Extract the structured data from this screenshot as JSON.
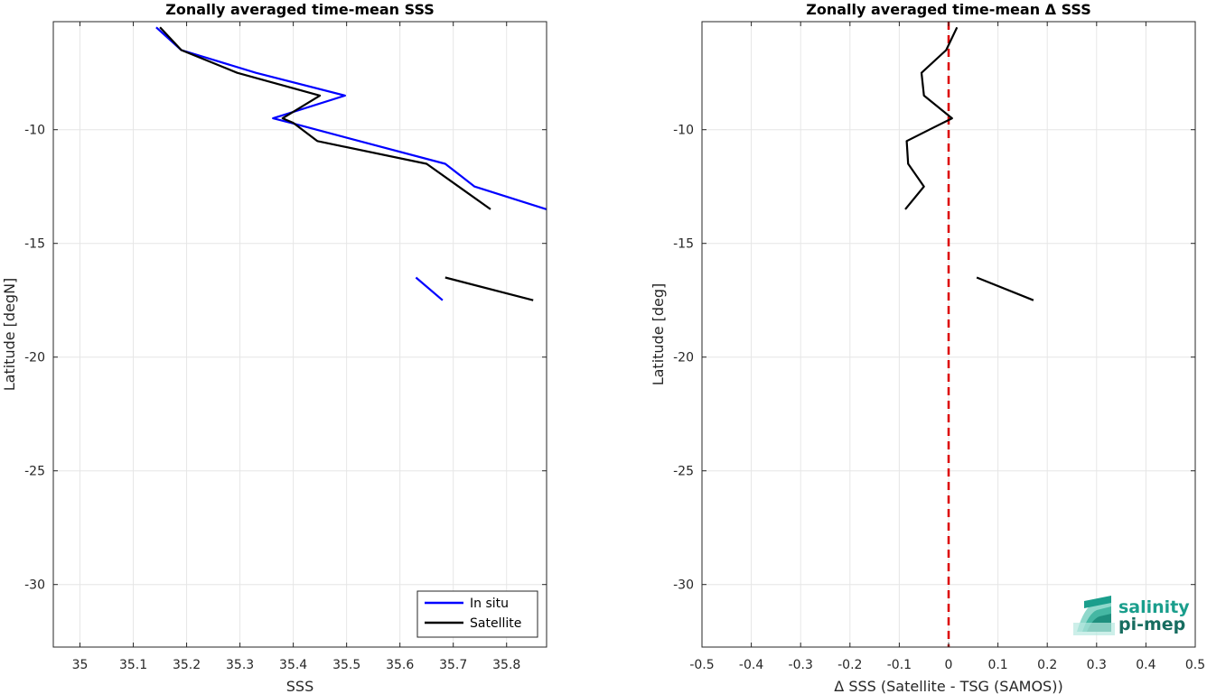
{
  "chart_data": [
    {
      "type": "line",
      "title": "Zonally averaged time-mean SSS",
      "xlabel": "SSS",
      "ylabel": "Latitude [degN]",
      "xlim": [
        34.95,
        35.875
      ],
      "ylim": [
        -32.75,
        -5.25
      ],
      "xticks": [
        35,
        35.1,
        35.2,
        35.3,
        35.4,
        35.5,
        35.6,
        35.7,
        35.8
      ],
      "xtick_labels": [
        "35",
        "35.1",
        "35.2",
        "35.3",
        "35.4",
        "35.5",
        "35.6",
        "35.7",
        "35.8"
      ],
      "yticks": [
        -10,
        -15,
        -20,
        -25,
        -30
      ],
      "ytick_labels": [
        "-10",
        "-15",
        "-20",
        "-25",
        "-30"
      ],
      "grid": true,
      "legend": "bottom-right",
      "series": [
        {
          "name": "In situ",
          "color": "#0000ff",
          "segments": [
            [
              [
                35.143,
                -5.5
              ],
              [
                35.19,
                -6.5
              ],
              [
                35.33,
                -7.5
              ],
              [
                35.497,
                -8.5
              ],
              [
                35.362,
                -9.5
              ],
              [
                35.395,
                -9.7
              ],
              [
                35.685,
                -11.5
              ],
              [
                35.74,
                -12.5
              ],
              [
                35.875,
                -13.5
              ]
            ],
            [
              [
                35.63,
                -16.5
              ],
              [
                35.68,
                -17.5
              ]
            ]
          ]
        },
        {
          "name": "Satellite",
          "color": "#000000",
          "segments": [
            [
              [
                35.15,
                -5.5
              ],
              [
                35.19,
                -6.5
              ],
              [
                35.295,
                -7.5
              ],
              [
                35.45,
                -8.5
              ],
              [
                35.38,
                -9.5
              ],
              [
                35.4,
                -9.7
              ],
              [
                35.445,
                -10.5
              ],
              [
                35.65,
                -11.5
              ],
              [
                35.71,
                -12.5
              ],
              [
                35.77,
                -13.5
              ]
            ],
            [
              [
                35.685,
                -16.5
              ],
              [
                35.85,
                -17.5
              ]
            ]
          ]
        }
      ]
    },
    {
      "type": "line",
      "title": "Zonally averaged time-mean Δ SSS",
      "xlabel": "Δ SSS (Satellite - TSG (SAMOS))",
      "ylabel": "Latitude [deg]",
      "xlim": [
        -0.5,
        0.5
      ],
      "ylim": [
        -32.75,
        -5.25
      ],
      "xticks": [
        -0.5,
        -0.4,
        -0.3,
        -0.2,
        -0.1,
        0,
        0.1,
        0.2,
        0.3,
        0.4,
        0.5
      ],
      "xtick_labels": [
        "-0.5",
        "-0.4",
        "-0.3",
        "-0.2",
        "-0.1",
        "0",
        "0.1",
        "0.2",
        "0.3",
        "0.4",
        "0.5"
      ],
      "yticks": [
        -10,
        -15,
        -20,
        -25,
        -30
      ],
      "ytick_labels": [
        "-10",
        "-15",
        "-20",
        "-25",
        "-30"
      ],
      "grid": true,
      "reference_line": {
        "x": 0,
        "color": "#dd0000",
        "style": "dashed"
      },
      "series": [
        {
          "color": "#000000",
          "segments": [
            [
              [
                0.017,
                -5.5
              ],
              [
                -0.005,
                -6.5
              ],
              [
                -0.055,
                -7.5
              ],
              [
                -0.05,
                -8.5
              ],
              [
                0.007,
                -9.5
              ],
              [
                -0.03,
                -9.9
              ],
              [
                -0.085,
                -10.5
              ],
              [
                -0.082,
                -11.5
              ],
              [
                -0.05,
                -12.5
              ],
              [
                -0.088,
                -13.5
              ]
            ],
            [
              [
                0.057,
                -16.5
              ],
              [
                0.172,
                -17.5
              ]
            ]
          ]
        }
      ]
    }
  ],
  "logo": {
    "line1": "salinity",
    "line2": "pi-mep",
    "color1": "#1a9e8c",
    "color2": "#176d60"
  }
}
